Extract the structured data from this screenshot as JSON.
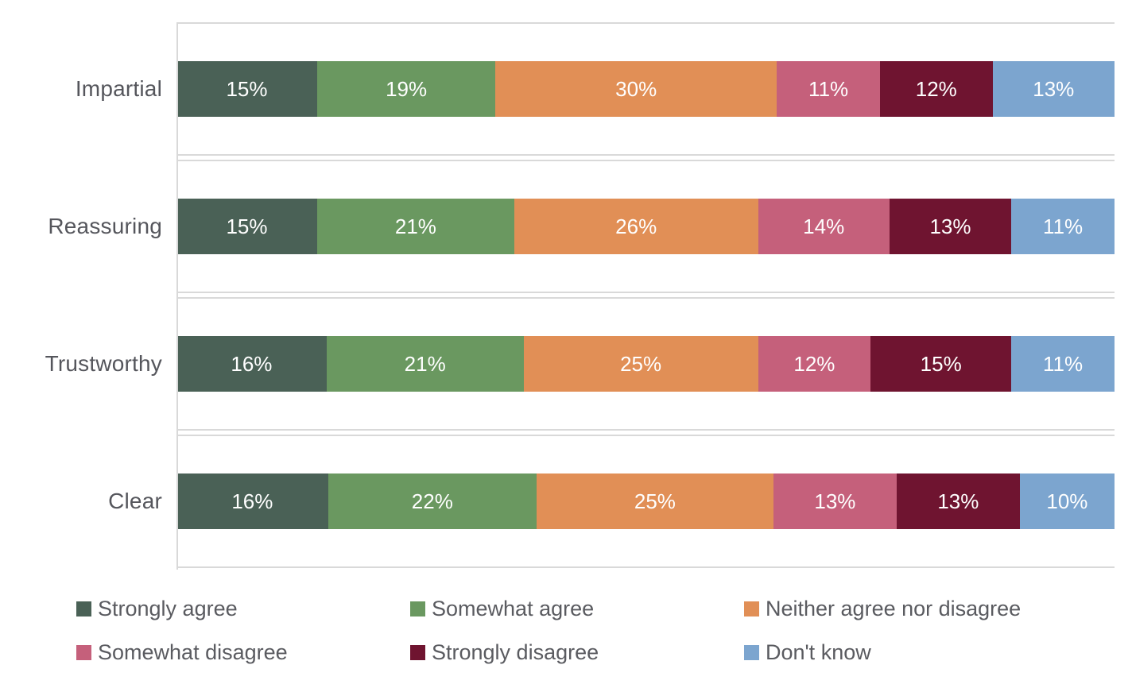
{
  "chart_data": {
    "type": "bar",
    "orientation": "horizontal-stacked",
    "title": "",
    "xlabel": "",
    "ylabel": "",
    "xlim": [
      0,
      100
    ],
    "value_suffix": "%",
    "gridlines": "category-band-separators",
    "gridline_color": "#d9d9d9",
    "label_color": "#55565c",
    "bar_label_color": "#ffffff",
    "legend_position": "bottom",
    "categories": [
      "Impartial",
      "Reassuring",
      "Trustworthy",
      "Clear"
    ],
    "series": [
      {
        "name": "Strongly agree",
        "color": "#4a6156",
        "values": [
          15,
          15,
          16,
          16
        ]
      },
      {
        "name": "Somewhat agree",
        "color": "#6a9860",
        "values": [
          19,
          21,
          21,
          22
        ]
      },
      {
        "name": "Neither agree nor disagree",
        "color": "#e18f56",
        "values": [
          30,
          26,
          25,
          25
        ]
      },
      {
        "name": "Somewhat disagree",
        "color": "#c5607b",
        "values": [
          11,
          14,
          12,
          13
        ]
      },
      {
        "name": "Strongly disagree",
        "color": "#6f1430",
        "values": [
          12,
          13,
          15,
          13
        ]
      },
      {
        "name": "Don't know",
        "color": "#7ca5cf",
        "values": [
          13,
          11,
          11,
          10
        ]
      }
    ]
  }
}
